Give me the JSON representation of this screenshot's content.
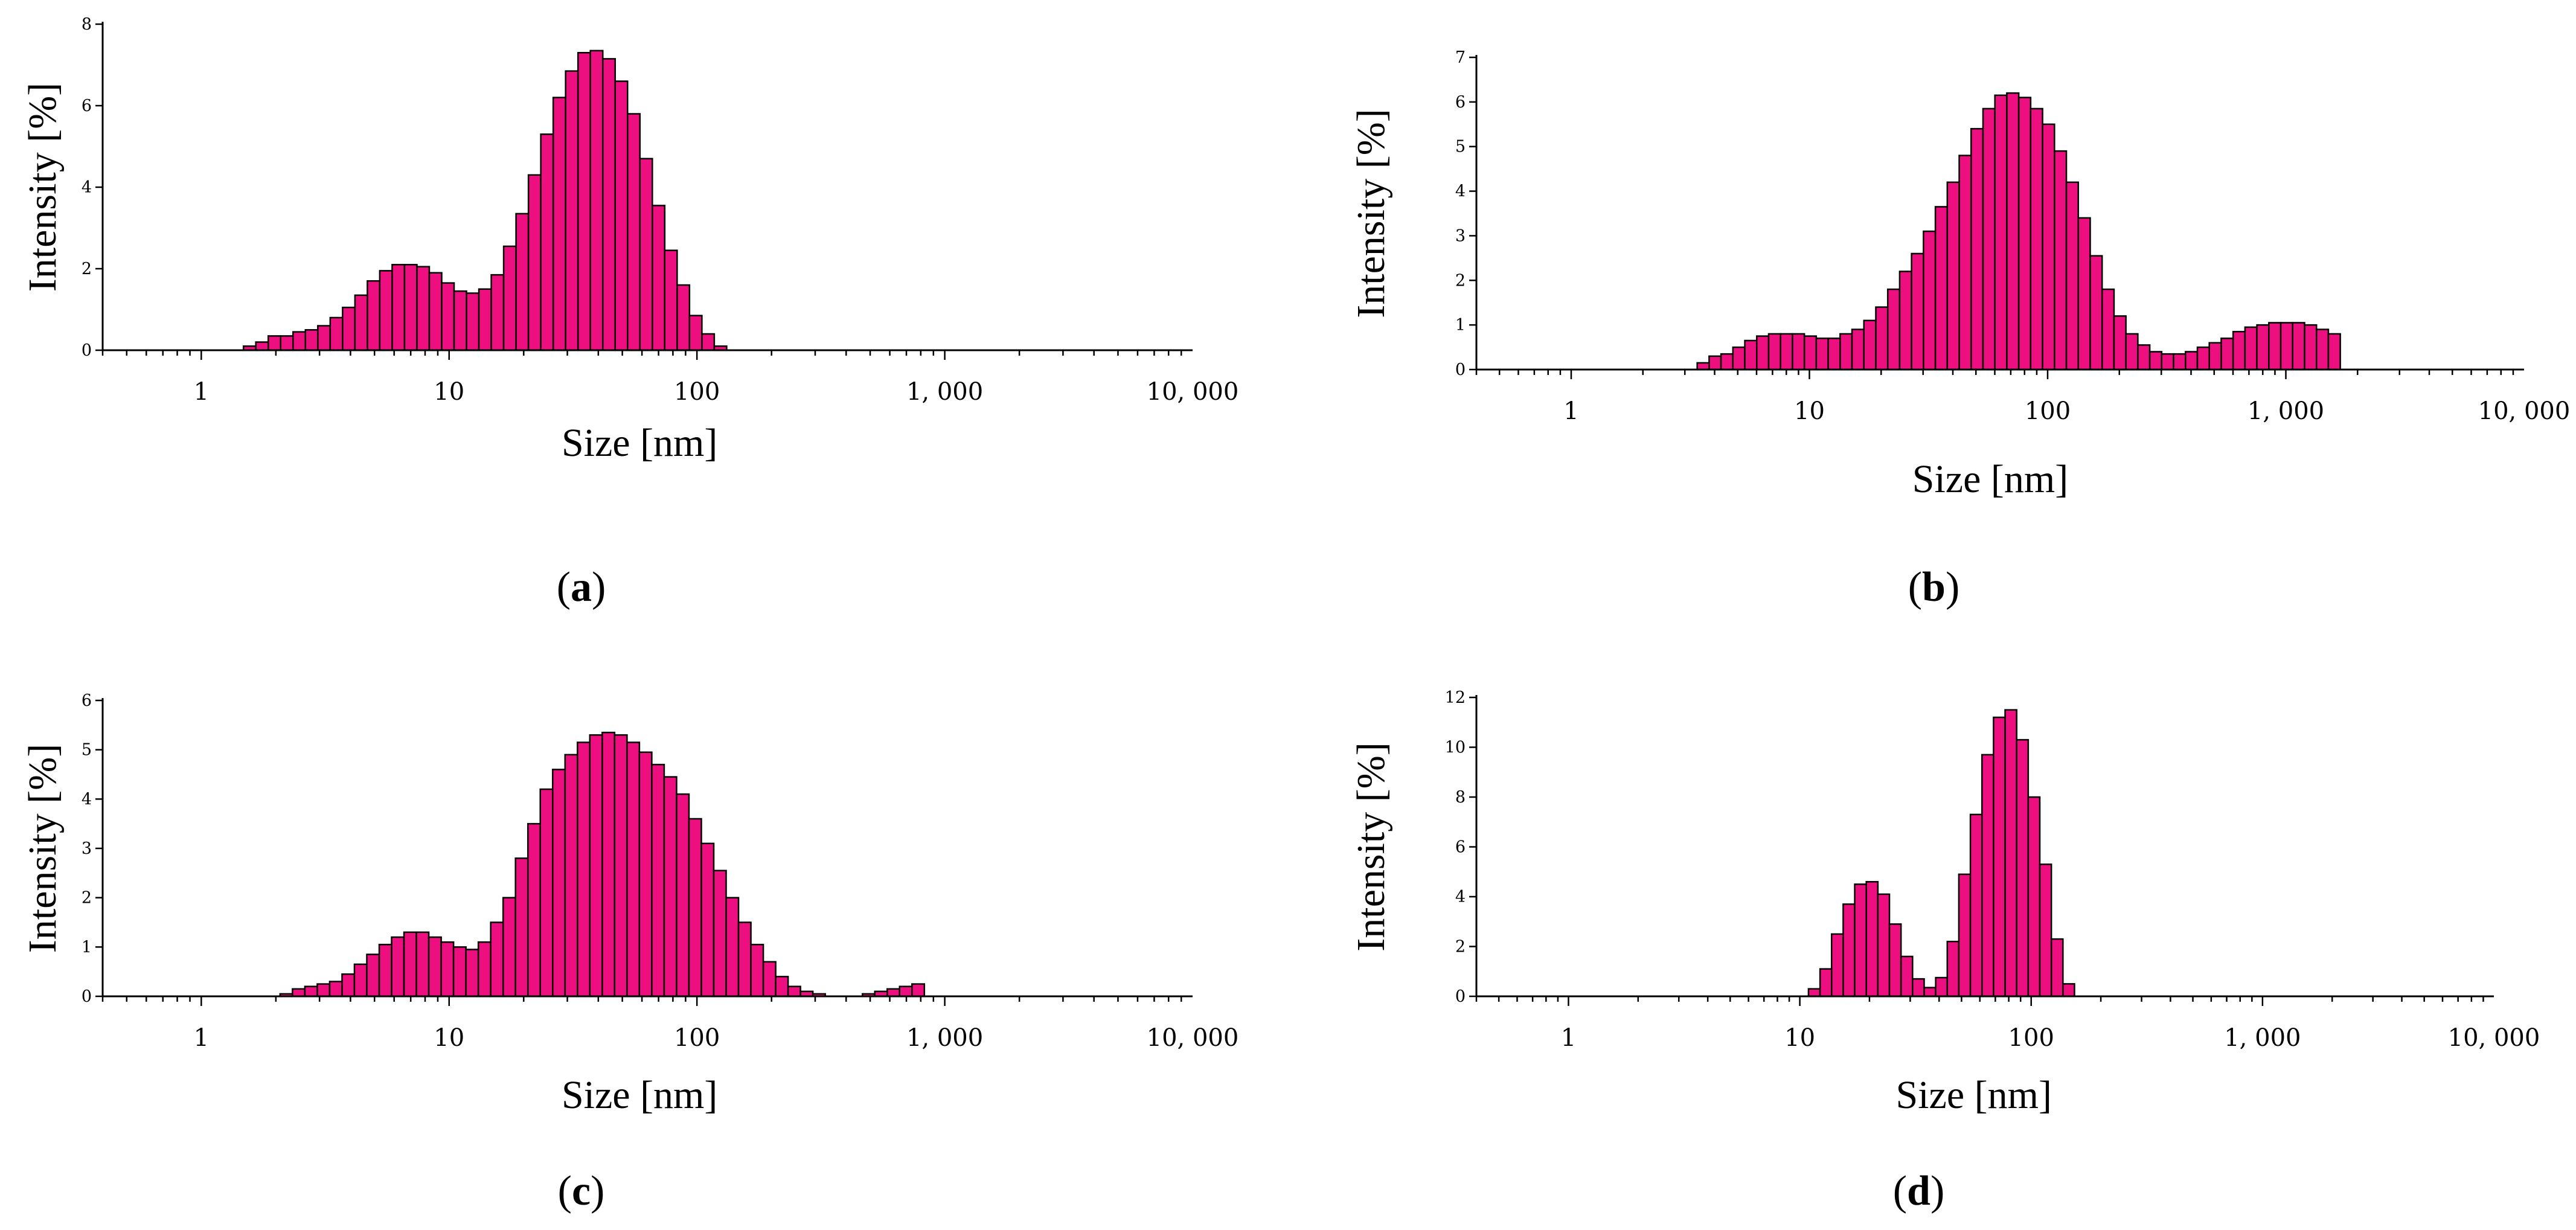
{
  "colors": {
    "bar_fill": "#ED0F7F",
    "bar_edge": "#000000",
    "axis": "#000000"
  },
  "chart_data": [
    {
      "panel": "(a)",
      "panel_text": [
        "(",
        "a",
        ")"
      ],
      "type": "bar",
      "xlabel": "Size [nm]",
      "ylabel": "Intensity [%]",
      "xscale": "log",
      "xlim": [
        0.4,
        10000
      ],
      "ylim": [
        0,
        8
      ],
      "yticks": [
        0,
        2,
        4,
        6,
        8
      ],
      "xtick_labels": [
        "1",
        "10",
        "100",
        "1, 000",
        "10, 000"
      ],
      "bin_start": 1.48,
      "bin_ratio": 1.122,
      "values": [
        0.1,
        0.2,
        0.35,
        0.35,
        0.45,
        0.5,
        0.6,
        0.8,
        1.05,
        1.35,
        1.7,
        1.95,
        2.1,
        2.1,
        2.05,
        1.9,
        1.65,
        1.45,
        1.4,
        1.5,
        1.85,
        2.55,
        3.35,
        4.3,
        5.3,
        6.2,
        6.85,
        7.3,
        7.35,
        7.15,
        6.6,
        5.8,
        4.7,
        3.55,
        2.45,
        1.6,
        0.85,
        0.4,
        0.1
      ]
    },
    {
      "panel": "(b)",
      "panel_text": [
        "(",
        "b",
        ")"
      ],
      "type": "bar",
      "xlabel": "Size [nm]",
      "ylabel": "Intensity [%]",
      "xscale": "log",
      "xlim": [
        0.4,
        10000
      ],
      "ylim": [
        0,
        7
      ],
      "yticks": [
        0,
        1,
        2,
        3,
        4,
        5,
        6,
        7
      ],
      "xtick_labels": [
        "1",
        "10",
        "100",
        "1, 000",
        "10, 000"
      ],
      "bin_start": 3.38,
      "bin_ratio": 1.122,
      "values": [
        0.15,
        0.3,
        0.35,
        0.5,
        0.65,
        0.75,
        0.8,
        0.8,
        0.8,
        0.75,
        0.7,
        0.7,
        0.8,
        0.9,
        1.1,
        1.4,
        1.8,
        2.2,
        2.6,
        3.1,
        3.65,
        4.2,
        4.8,
        5.4,
        5.85,
        6.15,
        6.2,
        6.1,
        5.85,
        5.5,
        4.9,
        4.2,
        3.4,
        2.55,
        1.8,
        1.2,
        0.8,
        0.55,
        0.4,
        0.35,
        0.35,
        0.4,
        0.5,
        0.6,
        0.7,
        0.85,
        0.95,
        1.0,
        1.05,
        1.05,
        1.05,
        1.0,
        0.9,
        0.8
      ]
    },
    {
      "panel": "(c)",
      "panel_text": [
        "(",
        "c",
        ")"
      ],
      "type": "bar",
      "xlabel": "Size [nm]",
      "ylabel": "Intensity [%]",
      "xscale": "log",
      "xlim": [
        0.4,
        10000
      ],
      "ylim": [
        0,
        6
      ],
      "yticks": [
        0,
        1,
        2,
        3,
        4,
        5,
        6
      ],
      "xtick_labels": [
        "1",
        "10",
        "100",
        "1, 000",
        "10, 000"
      ],
      "bin_start": 2.08,
      "bin_ratio": 1.122,
      "values": [
        0.05,
        0.15,
        0.2,
        0.25,
        0.3,
        0.45,
        0.65,
        0.85,
        1.05,
        1.2,
        1.3,
        1.3,
        1.2,
        1.1,
        1.0,
        0.95,
        1.1,
        1.5,
        2.0,
        2.8,
        3.5,
        4.2,
        4.6,
        4.9,
        5.15,
        5.3,
        5.35,
        5.3,
        5.15,
        4.95,
        4.7,
        4.45,
        4.1,
        3.6,
        3.1,
        2.55,
        2.0,
        1.5,
        1.05,
        0.7,
        0.4,
        0.2,
        0.1,
        0.05,
        0.0,
        0.0,
        0.0,
        0.05,
        0.1,
        0.15,
        0.2,
        0.25
      ]
    },
    {
      "panel": "(d)",
      "panel_text": [
        "(",
        "d",
        ")"
      ],
      "type": "bar",
      "xlabel": "Size [nm]",
      "ylabel": "Intensity [%]",
      "xscale": "log",
      "xlim": [
        0.4,
        10000
      ],
      "ylim": [
        0,
        12
      ],
      "yticks": [
        0,
        2,
        4,
        6,
        8,
        10,
        12
      ],
      "xtick_labels": [
        "1",
        "10",
        "100",
        "1, 000",
        "10, 000"
      ],
      "bin_start": 10.9,
      "bin_ratio": 1.122,
      "values": [
        0.3,
        1.1,
        2.5,
        3.7,
        4.5,
        4.6,
        4.1,
        2.9,
        1.6,
        0.7,
        0.35,
        0.75,
        2.2,
        4.9,
        7.3,
        9.7,
        11.2,
        11.5,
        10.3,
        8.0,
        5.3,
        2.3,
        0.5
      ]
    }
  ]
}
